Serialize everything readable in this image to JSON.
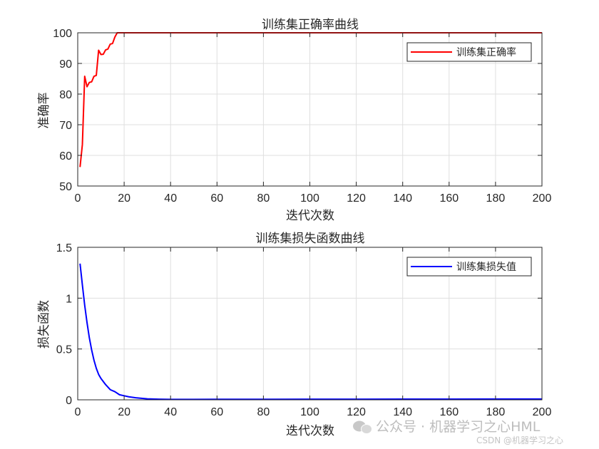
{
  "chart_data": [
    {
      "type": "line",
      "title": "训练集正确率曲线",
      "xlabel": "迭代次数",
      "ylabel": "准确率",
      "xlim": [
        0,
        200
      ],
      "ylim": [
        50,
        100
      ],
      "xticks": [
        0,
        20,
        40,
        60,
        80,
        100,
        120,
        140,
        160,
        180,
        200
      ],
      "yticks": [
        50,
        60,
        70,
        80,
        90,
        100
      ],
      "grid": true,
      "legend_position": "top-right",
      "series": [
        {
          "name": "训练集正确率",
          "color": "#ff0000",
          "x": [
            1,
            2,
            3,
            4,
            5,
            6,
            7,
            8,
            9,
            10,
            11,
            12,
            13,
            14,
            15,
            16,
            17,
            18,
            20,
            40,
            60,
            80,
            100,
            120,
            140,
            160,
            180,
            200
          ],
          "y": [
            56.2,
            63.5,
            85.8,
            82.4,
            83.8,
            84.0,
            85.8,
            86.1,
            94.3,
            92.9,
            93.0,
            94.4,
            94.7,
            96.3,
            96.5,
            98.6,
            100,
            100,
            100,
            100,
            100,
            100,
            100,
            100,
            100,
            100,
            100,
            100
          ]
        }
      ]
    },
    {
      "type": "line",
      "title": "训练集损失函数曲线",
      "xlabel": "迭代次数",
      "ylabel": "损失函数",
      "xlim": [
        0,
        200
      ],
      "ylim": [
        0,
        1.5
      ],
      "xticks": [
        0,
        20,
        40,
        60,
        80,
        100,
        120,
        140,
        160,
        180,
        200
      ],
      "yticks": [
        "0",
        "0.5",
        "1",
        "1.5"
      ],
      "grid": true,
      "legend_position": "top-right",
      "series": [
        {
          "name": "训练集损失值",
          "color": "#0000ff",
          "x": [
            1,
            2,
            3,
            4,
            5,
            6,
            7,
            8,
            9,
            10,
            12,
            14,
            16,
            18,
            20,
            22,
            25,
            30,
            35,
            40,
            50,
            60,
            80,
            100,
            120,
            140,
            160,
            180,
            200
          ],
          "y": [
            1.34,
            1.13,
            0.93,
            0.76,
            0.61,
            0.49,
            0.39,
            0.31,
            0.25,
            0.21,
            0.15,
            0.1,
            0.08,
            0.05,
            0.04,
            0.03,
            0.02,
            0.01,
            0.006,
            0.004,
            0.004,
            0.005,
            0.005,
            0.006,
            0.006,
            0.007,
            0.007,
            0.008,
            0.008
          ]
        }
      ]
    }
  ],
  "watermark": {
    "main": "公众号 · 机器学习之心HML",
    "sub": "CSDN @机器学习之心"
  }
}
